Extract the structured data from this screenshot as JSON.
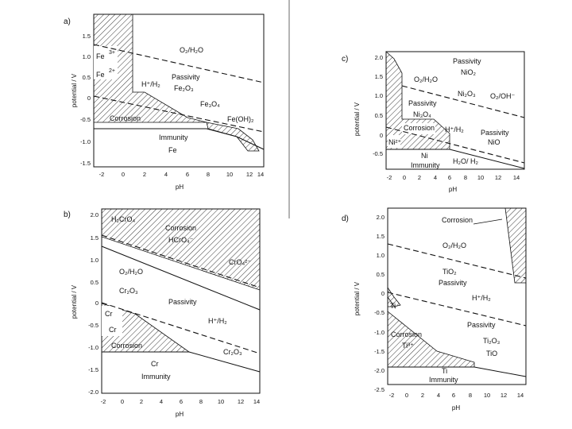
{
  "panels": {
    "a": {
      "letter": "a)",
      "ylabel": "potential / V",
      "xlabel": "pH",
      "xticks": [
        "-2",
        "0",
        "2",
        "4",
        "6",
        "8",
        "10",
        "12",
        "14"
      ],
      "yticks": [
        "1.5",
        "1.0",
        "0.5",
        "0",
        "-0.5",
        "-1.0",
        "-1.5"
      ],
      "labels": {
        "fe3": "Fe",
        "fe3_sup": "3+",
        "fe2": "Fe",
        "fe2_sup": "2+",
        "o2h2o": "O₂/H₂O",
        "passivity": "Passivity",
        "fe2o3": "Fe₂O₃",
        "hh2": "H⁺/H₂",
        "fe3o4": "Fe₃O₄",
        "corrosion": "Corrosion",
        "feoh2": "Fe(OH)₂",
        "immunity": "Immunity",
        "fe": "Fe"
      }
    },
    "b": {
      "letter": "b)",
      "ylabel": "potential / V",
      "xlabel": "pH",
      "xticks": [
        "-2",
        "0",
        "2",
        "4",
        "6",
        "8",
        "10",
        "12",
        "14"
      ],
      "yticks": [
        "2.0",
        "1.5",
        "1.0",
        "0.5",
        "0",
        "-0.5",
        "-1.0",
        "-1.5",
        "-2.0"
      ],
      "labels": {
        "h2cro4": "H₂CrO₄",
        "corrosion_top": "Corrosion",
        "hcro4": "HCrO₄⁻",
        "cro4": "CrO₄²⁻",
        "o2h2o": "O₂/H₂O",
        "cr2o3_left": "Cr₂O₃",
        "passivity": "Passivity",
        "cr3": "Cr",
        "cr2": "Cr",
        "hh2": "H⁺/H₂",
        "corrosion_bottom": "Corrosion",
        "cr2o3_right": "Cr₂O₃",
        "cr": "Cr",
        "immunity": "Immunity"
      }
    },
    "c": {
      "letter": "c)",
      "ylabel": "potential / V",
      "xlabel": "pH",
      "xticks": [
        "-2",
        "0",
        "2",
        "4",
        "6",
        "8",
        "10",
        "12",
        "14"
      ],
      "yticks": [
        "2.0",
        "1.5",
        "1.0",
        "0.5",
        "0",
        "-0.5"
      ],
      "labels": {
        "passivity_top": "Passivity",
        "nio2": "NiO₂",
        "o2h2o": "O₂/H₂O",
        "ni2o3": "Ni₂O₃",
        "o2oh": "O₂/OH⁻",
        "passivity_mid": "Passivity",
        "ni3o4": "Ni₃O₄",
        "corrosion": "Corrosion",
        "hh2": "H⁺/H₂",
        "passivity_right": "Passivity",
        "nio": "NiO",
        "ni2": "Ni²⁺",
        "ni": "Ni",
        "immunity": "Immunity",
        "h2oh2": "H₂O/ H₂"
      }
    },
    "d": {
      "letter": "d)",
      "ylabel": "potential / V",
      "xlabel": "pH",
      "xticks": [
        "-2",
        "0",
        "2",
        "4",
        "6",
        "8",
        "10",
        "12",
        "14"
      ],
      "yticks": [
        "2.0",
        "1.5",
        "1.0",
        "0.5",
        "0",
        "-0.5",
        "-1.0",
        "-1.5",
        "-2.0",
        "-2.5"
      ],
      "labels": {
        "corrosion_top": "Corrosion",
        "o2h2o": "O₂/H₂O",
        "tio2": "TiO₂",
        "passivity_top": "Passivity",
        "ti_small": "Ti",
        "hh2": "H⁺/H₂",
        "passivity_mid": "Passivity",
        "corrosion_left": "Corrosion",
        "ti3": "Ti³⁺",
        "ti2o3": "Ti₂O₃",
        "tio": "TiO",
        "ti": "Ti",
        "immunity": "Immunity"
      }
    }
  }
}
